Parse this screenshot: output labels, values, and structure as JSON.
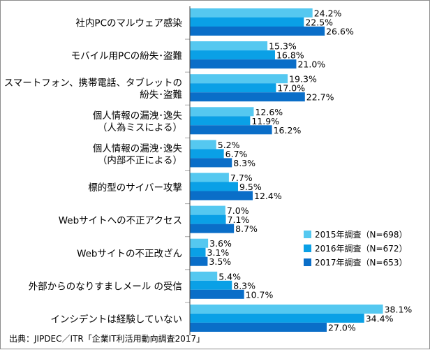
{
  "chart_data": {
    "type": "bar",
    "orientation": "horizontal",
    "categories": [
      [
        "社内PCのマルウェア感染"
      ],
      [
        "モバイル用PCの紛失･盗難"
      ],
      [
        "スマートフォン、携帯電話、タブレットの",
        "紛失･盗難"
      ],
      [
        "個人情報の漏洩･逸失",
        "（人為ミスによる）"
      ],
      [
        "個人情報の漏洩･逸失",
        "（内部不正による）"
      ],
      [
        "標的型のサイバー攻撃"
      ],
      [
        "Webサイトへの不正アクセス"
      ],
      [
        "Webサイトの不正改ざん"
      ],
      [
        "外部からのなりすましメール の受信"
      ],
      [
        "インシデントは経験していない"
      ]
    ],
    "series": [
      {
        "name": "2015年調査（N=698）",
        "color": "#55c8f0",
        "values": [
          24.2,
          15.3,
          19.3,
          12.6,
          5.2,
          7.7,
          7.0,
          3.6,
          5.4,
          38.1
        ]
      },
      {
        "name": "2016年調査（N=672）",
        "color": "#0aa0e6",
        "values": [
          22.5,
          16.8,
          17.0,
          11.9,
          6.7,
          9.5,
          7.1,
          3.1,
          8.3,
          34.4
        ]
      },
      {
        "name": "2017年調査（N=653）",
        "color": "#0a6ec8",
        "values": [
          26.6,
          21.0,
          22.7,
          16.2,
          8.3,
          12.4,
          8.7,
          3.5,
          10.7,
          27.0
        ]
      }
    ],
    "value_suffix": "%",
    "xlim": [
      0,
      40
    ],
    "grid": false,
    "legend_position": "right"
  },
  "source": "出典：JIPDEC／ITR「企業IT利活用動向調査2017」",
  "colors": {
    "separator": "#a6a6a6",
    "axis": "#404040"
  }
}
